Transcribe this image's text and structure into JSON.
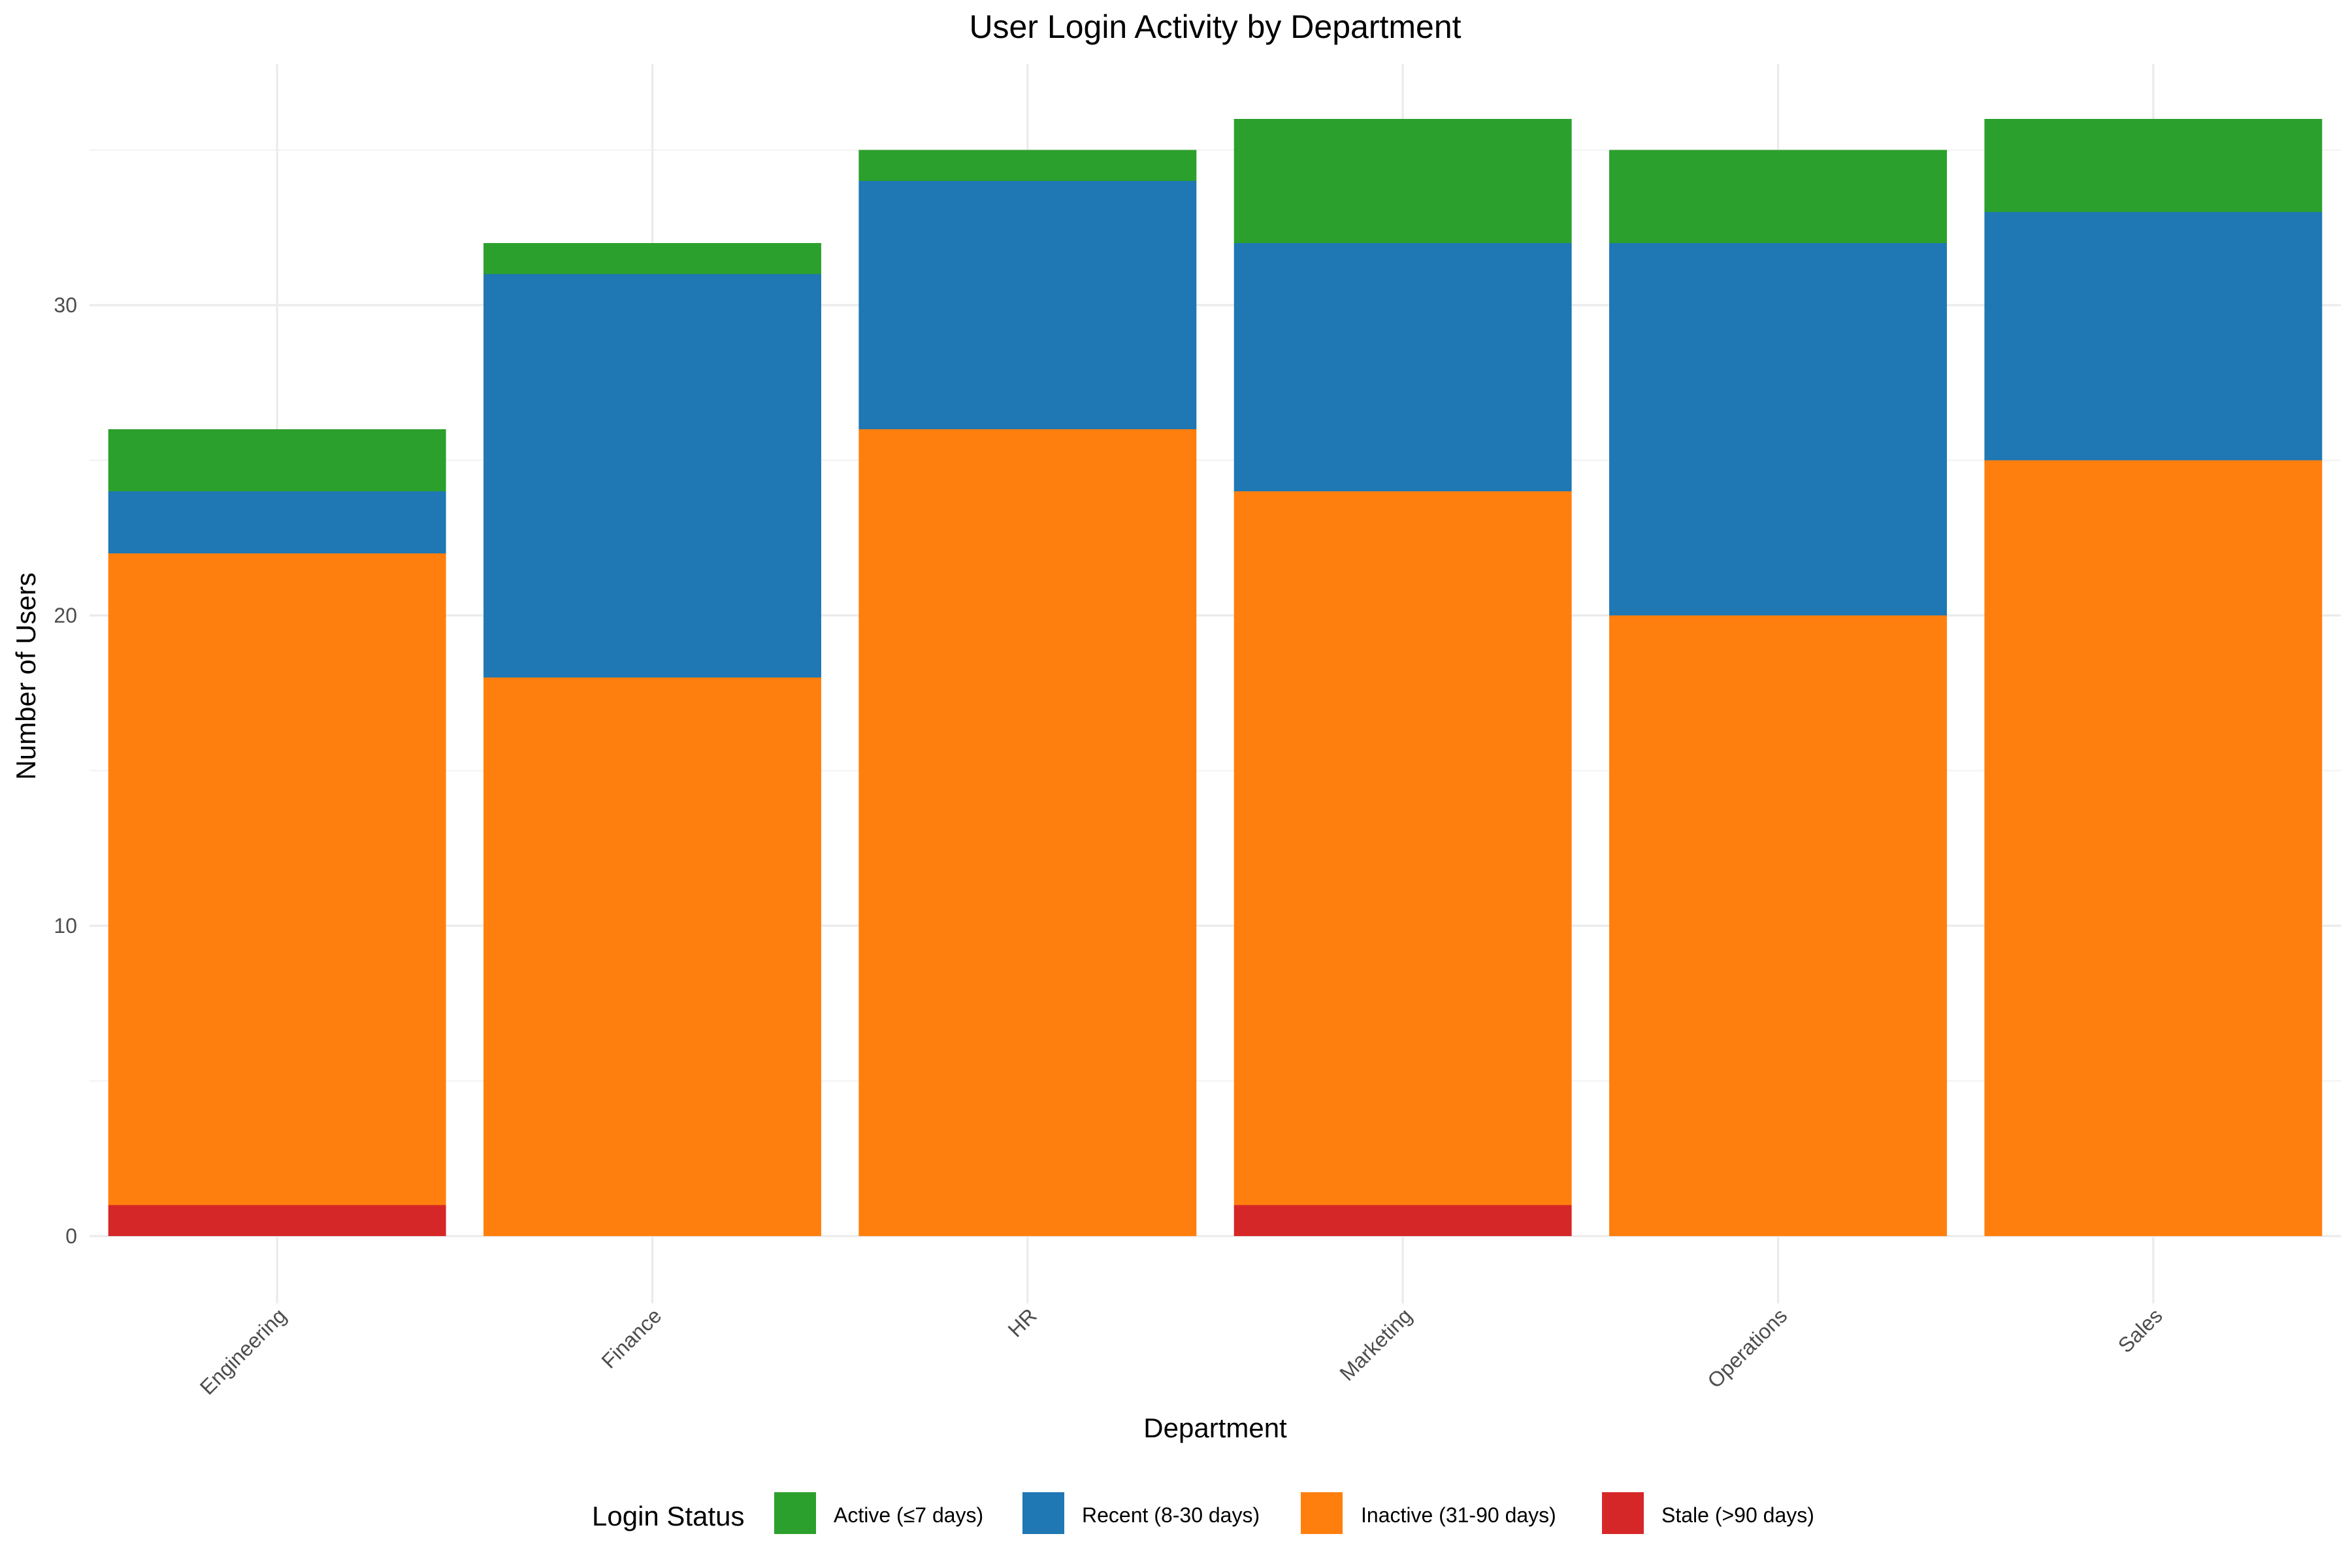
{
  "chart_data": {
    "type": "bar",
    "stacked": true,
    "title": "User Login Activity by Department",
    "xlabel": "Department",
    "ylabel": "Number of Users",
    "categories": [
      "Engineering",
      "Finance",
      "HR",
      "Marketing",
      "Operations",
      "Sales"
    ],
    "ylim": [
      0,
      37.8
    ],
    "yticks": [
      0,
      10,
      20,
      30
    ],
    "grid": true,
    "legend_position": "bottom",
    "legend_title": "Login Status",
    "series": [
      {
        "name": "Stale (>90 days)",
        "color": "#d62728",
        "values": [
          1,
          0,
          0,
          1,
          0,
          0
        ]
      },
      {
        "name": "Inactive (31-90 days)",
        "color": "#ff7f0e",
        "values": [
          21,
          18,
          26,
          23,
          20,
          25
        ]
      },
      {
        "name": "Recent (8-30 days)",
        "color": "#1f77b4",
        "values": [
          2,
          13,
          8,
          8,
          12,
          8
        ]
      },
      {
        "name": "Active (≤7 days)",
        "color": "#2ca02c",
        "values": [
          2,
          1,
          1,
          4,
          3,
          3
        ]
      }
    ],
    "legend_order": [
      "Active (≤7 days)",
      "Recent (8-30 days)",
      "Inactive (31-90 days)",
      "Stale (>90 days)"
    ]
  }
}
